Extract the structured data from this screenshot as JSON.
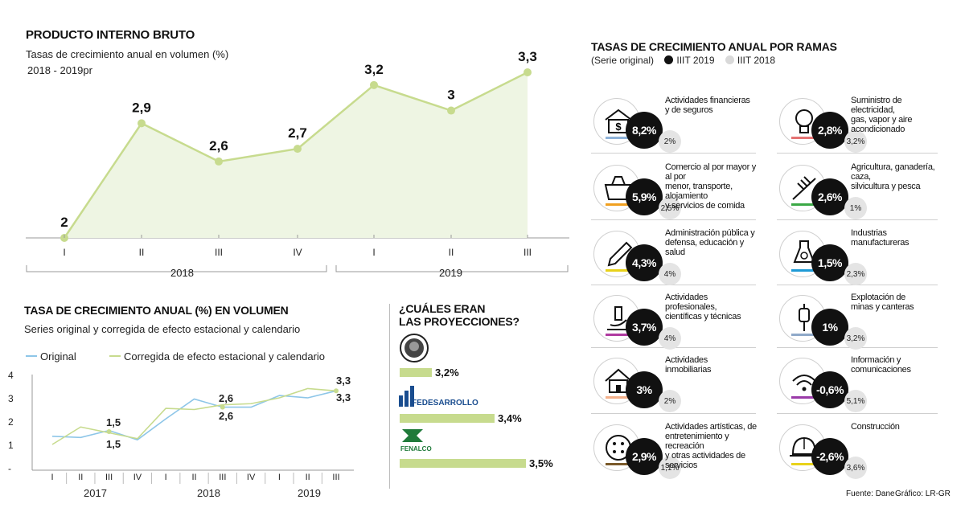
{
  "pib": {
    "title": "PRODUCTO INTERNO BRUTO",
    "subtitle": "Tasas de crecimiento anual en volumen (%)",
    "period": "2018 - 2019pr",
    "year_labels": [
      "2018",
      "2019"
    ]
  },
  "serie": {
    "title": "TASA DE CRECIMIENTO ANUAL (%) EN VOLUMEN",
    "subtitle": "Series original y corregida de efecto estacional y calendario",
    "legend_original": "Original",
    "legend_corregida": "Corregida de efecto estacional y calendario",
    "year_labels": [
      "2017",
      "2018",
      "2019"
    ],
    "label_1_5_a": "1,5",
    "label_1_5_b": "1,5",
    "label_2_6_a": "2,6",
    "label_2_6_b": "2,6",
    "label_3_3_a": "3,3",
    "label_3_3_b": "3,3"
  },
  "proyecciones": {
    "title_line1": "¿CUÁLES ERAN",
    "title_line2": "LAS PROYECCIONES?",
    "fedesarrollo_logo": "FEDESARROLLO",
    "fenalco_logo": "FENALCO",
    "items": [
      {
        "value": 3.2,
        "label": "3,2%"
      },
      {
        "value": 3.4,
        "label": "3,4%"
      },
      {
        "value": 3.5,
        "label": "3,5%"
      }
    ]
  },
  "ramas": {
    "title": "TASAS DE CRECIMIENTO ANUAL POR RAMAS",
    "legend_prefix": "(Serie original)",
    "legend_current": "IIIT 2019",
    "legend_previous": "IIIT 2018",
    "colors": {
      "current": "#111111",
      "previous": "#d9d9d9"
    },
    "sectors": [
      {
        "icon": "bank-money-icon",
        "l1": "Actividades financieras",
        "l2": "y de seguros",
        "l3": "",
        "value": "8,2%",
        "prev": "2%",
        "color": "#8fb3d9"
      },
      {
        "icon": "lightbulb-icon",
        "l1": "Suministro de electricidad,",
        "l2": "gas, vapor y aire",
        "l3": "acondicionado",
        "value": "2,8%",
        "prev": "3,2%",
        "color": "#e57373"
      },
      {
        "icon": "shopping-basket-icon",
        "l1": "Comercio al por mayor y al por",
        "l2": "menor, transporte, alojamiento",
        "l3": "y servicios de comida",
        "value": "5,9%",
        "prev": "2,5%",
        "color": "#f0a020"
      },
      {
        "icon": "rake-icon",
        "l1": "Agricultura, ganadería, caza,",
        "l2": "silvicultura y pesca",
        "l3": "",
        "value": "2,6%",
        "prev": "1%",
        "color": "#3aa845"
      },
      {
        "icon": "pencil-icon",
        "l1": "Administración pública y",
        "l2": "defensa, educación y salud",
        "l3": "",
        "value": "4,3%",
        "prev": "4%",
        "color": "#e8d21a"
      },
      {
        "icon": "flask-icon",
        "l1": "Industrias",
        "l2": "manufactureras",
        "l3": "",
        "value": "1,5%",
        "prev": "2,3%",
        "color": "#1e9ad6"
      },
      {
        "icon": "microscope-icon",
        "l1": "Actividades profesionales,",
        "l2": "científicas y técnicas",
        "l3": "",
        "value": "3,7%",
        "prev": "4%",
        "color": "#b03aa0"
      },
      {
        "icon": "drill-icon",
        "l1": "Explotación de",
        "l2": "minas y canteras",
        "l3": "",
        "value": "1%",
        "prev": "3,2%",
        "color": "#8fa9c9"
      },
      {
        "icon": "house-icon",
        "l1": "Actividades",
        "l2": "inmobiliarias",
        "l3": "",
        "value": "3%",
        "prev": "2%",
        "color": "#f4b08a"
      },
      {
        "icon": "wifi-icon",
        "l1": "Información y",
        "l2": "comunicaciones",
        "l3": "",
        "value": "-0,6%",
        "prev": "5,1%",
        "color": "#9a3aa8"
      },
      {
        "icon": "dice-icon",
        "l1": "Actividades artísticas, de",
        "l2": "entretenimiento y recreación",
        "l3": "y otras actividades de servicios",
        "value": "2,9%",
        "prev": "1,1%",
        "color": "#7a5a2a"
      },
      {
        "icon": "hardhat-icon",
        "l1": "Construcción",
        "l2": "",
        "l3": "",
        "value": "-2,6%",
        "prev": "3,6%",
        "color": "#e8d21a"
      }
    ]
  },
  "footer": {
    "source": "Fuente: Dane",
    "credit": "Gráfico: LR-GR"
  },
  "chart_data": [
    {
      "type": "area",
      "title": "PRODUCTO INTERNO BRUTO",
      "subtitle": "Tasas de crecimiento anual en volumen (%)",
      "categories": [
        "I",
        "II",
        "III",
        "IV",
        "I",
        "II",
        "III"
      ],
      "values": [
        2,
        2.9,
        2.6,
        2.7,
        3.2,
        3,
        3.3
      ],
      "labels": [
        "2",
        "2,9",
        "2,6",
        "2,7",
        "3,2",
        "3",
        "3,3"
      ],
      "groups": [
        {
          "label": "2018",
          "count": 4
        },
        {
          "label": "2019",
          "count": 3
        }
      ],
      "ylim": [
        2,
        3.3
      ],
      "color": "#c7db8e",
      "fill": "#eef5e3"
    },
    {
      "type": "line",
      "title": "TASA DE CRECIMIENTO ANUAL (%) EN VOLUMEN",
      "categories": [
        "I",
        "II",
        "III",
        "IV",
        "I",
        "II",
        "III",
        "IV",
        "I",
        "II",
        "III"
      ],
      "yticks": [
        "4",
        "3",
        "2",
        "1",
        "-"
      ],
      "ylim": [
        0,
        4
      ],
      "series": [
        {
          "name": "Original",
          "color": "#8ec6e8",
          "values": [
            1.35,
            1.3,
            1.6,
            1.2,
            2.1,
            2.95,
            2.6,
            2.6,
            3.1,
            3.0,
            3.3
          ]
        },
        {
          "name": "Corregida de efecto estacional y calendario",
          "color": "#c7db8e",
          "values": [
            1.0,
            1.75,
            1.5,
            1.25,
            2.55,
            2.5,
            2.7,
            2.75,
            3.0,
            3.4,
            3.3
          ]
        }
      ]
    },
    {
      "type": "bar",
      "title": "¿CUÁLES ERAN LAS PROYECCIONES?",
      "values": [
        3.2,
        3.4,
        3.5
      ],
      "labels": [
        "3,2%",
        "3,4%",
        "3,5%"
      ]
    }
  ]
}
